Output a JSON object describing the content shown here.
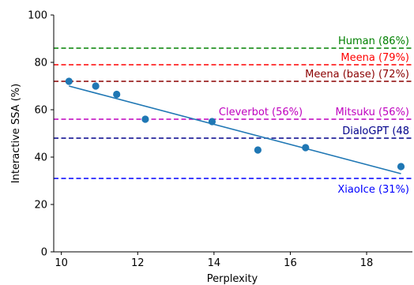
{
  "chart_data": {
    "type": "scatter",
    "title": "",
    "xlabel": "Perplexity",
    "ylabel": "Interactive SSA (%)",
    "xlim": [
      9.8,
      19.2
    ],
    "ylim": [
      0,
      100
    ],
    "xticks": [
      "10",
      "12",
      "14",
      "16",
      "18"
    ],
    "yticks": [
      "0",
      "20",
      "40",
      "60",
      "80",
      "100"
    ],
    "grid": false,
    "points": [
      {
        "x": 10.2,
        "y": 72
      },
      {
        "x": 10.9,
        "y": 70
      },
      {
        "x": 11.45,
        "y": 66.5
      },
      {
        "x": 12.2,
        "y": 56
      },
      {
        "x": 13.95,
        "y": 55
      },
      {
        "x": 15.15,
        "y": 43
      },
      {
        "x": 16.4,
        "y": 44
      },
      {
        "x": 18.9,
        "y": 36
      }
    ],
    "point_color": "#1f77b4",
    "trend_line": {
      "x": [
        10.2,
        18.9
      ],
      "y": [
        70,
        33
      ],
      "color": "#1f77b4"
    },
    "reference_lines": [
      {
        "label": "Human (86%)",
        "y": 86,
        "color": "#008000",
        "align": "right"
      },
      {
        "label": "Meena (79%)",
        "y": 79,
        "color": "#ff0000",
        "align": "right"
      },
      {
        "label": "Meena (base) (72%)",
        "y": 72,
        "color": "#8b0000",
        "align": "right"
      },
      {
        "label": "Cleverbot (56%)",
        "y": 56,
        "color": "#bf00bf",
        "align": "center"
      },
      {
        "label": "Mitsuku (56%)",
        "y": 56,
        "color": "#bf00bf",
        "align": "right"
      },
      {
        "label": "DialoGPT (48",
        "y": 48,
        "color": "#00008b",
        "align": "right"
      },
      {
        "label": "XiaoIce (31%)",
        "y": 31,
        "color": "#0000ff",
        "align": "right-below"
      }
    ]
  }
}
